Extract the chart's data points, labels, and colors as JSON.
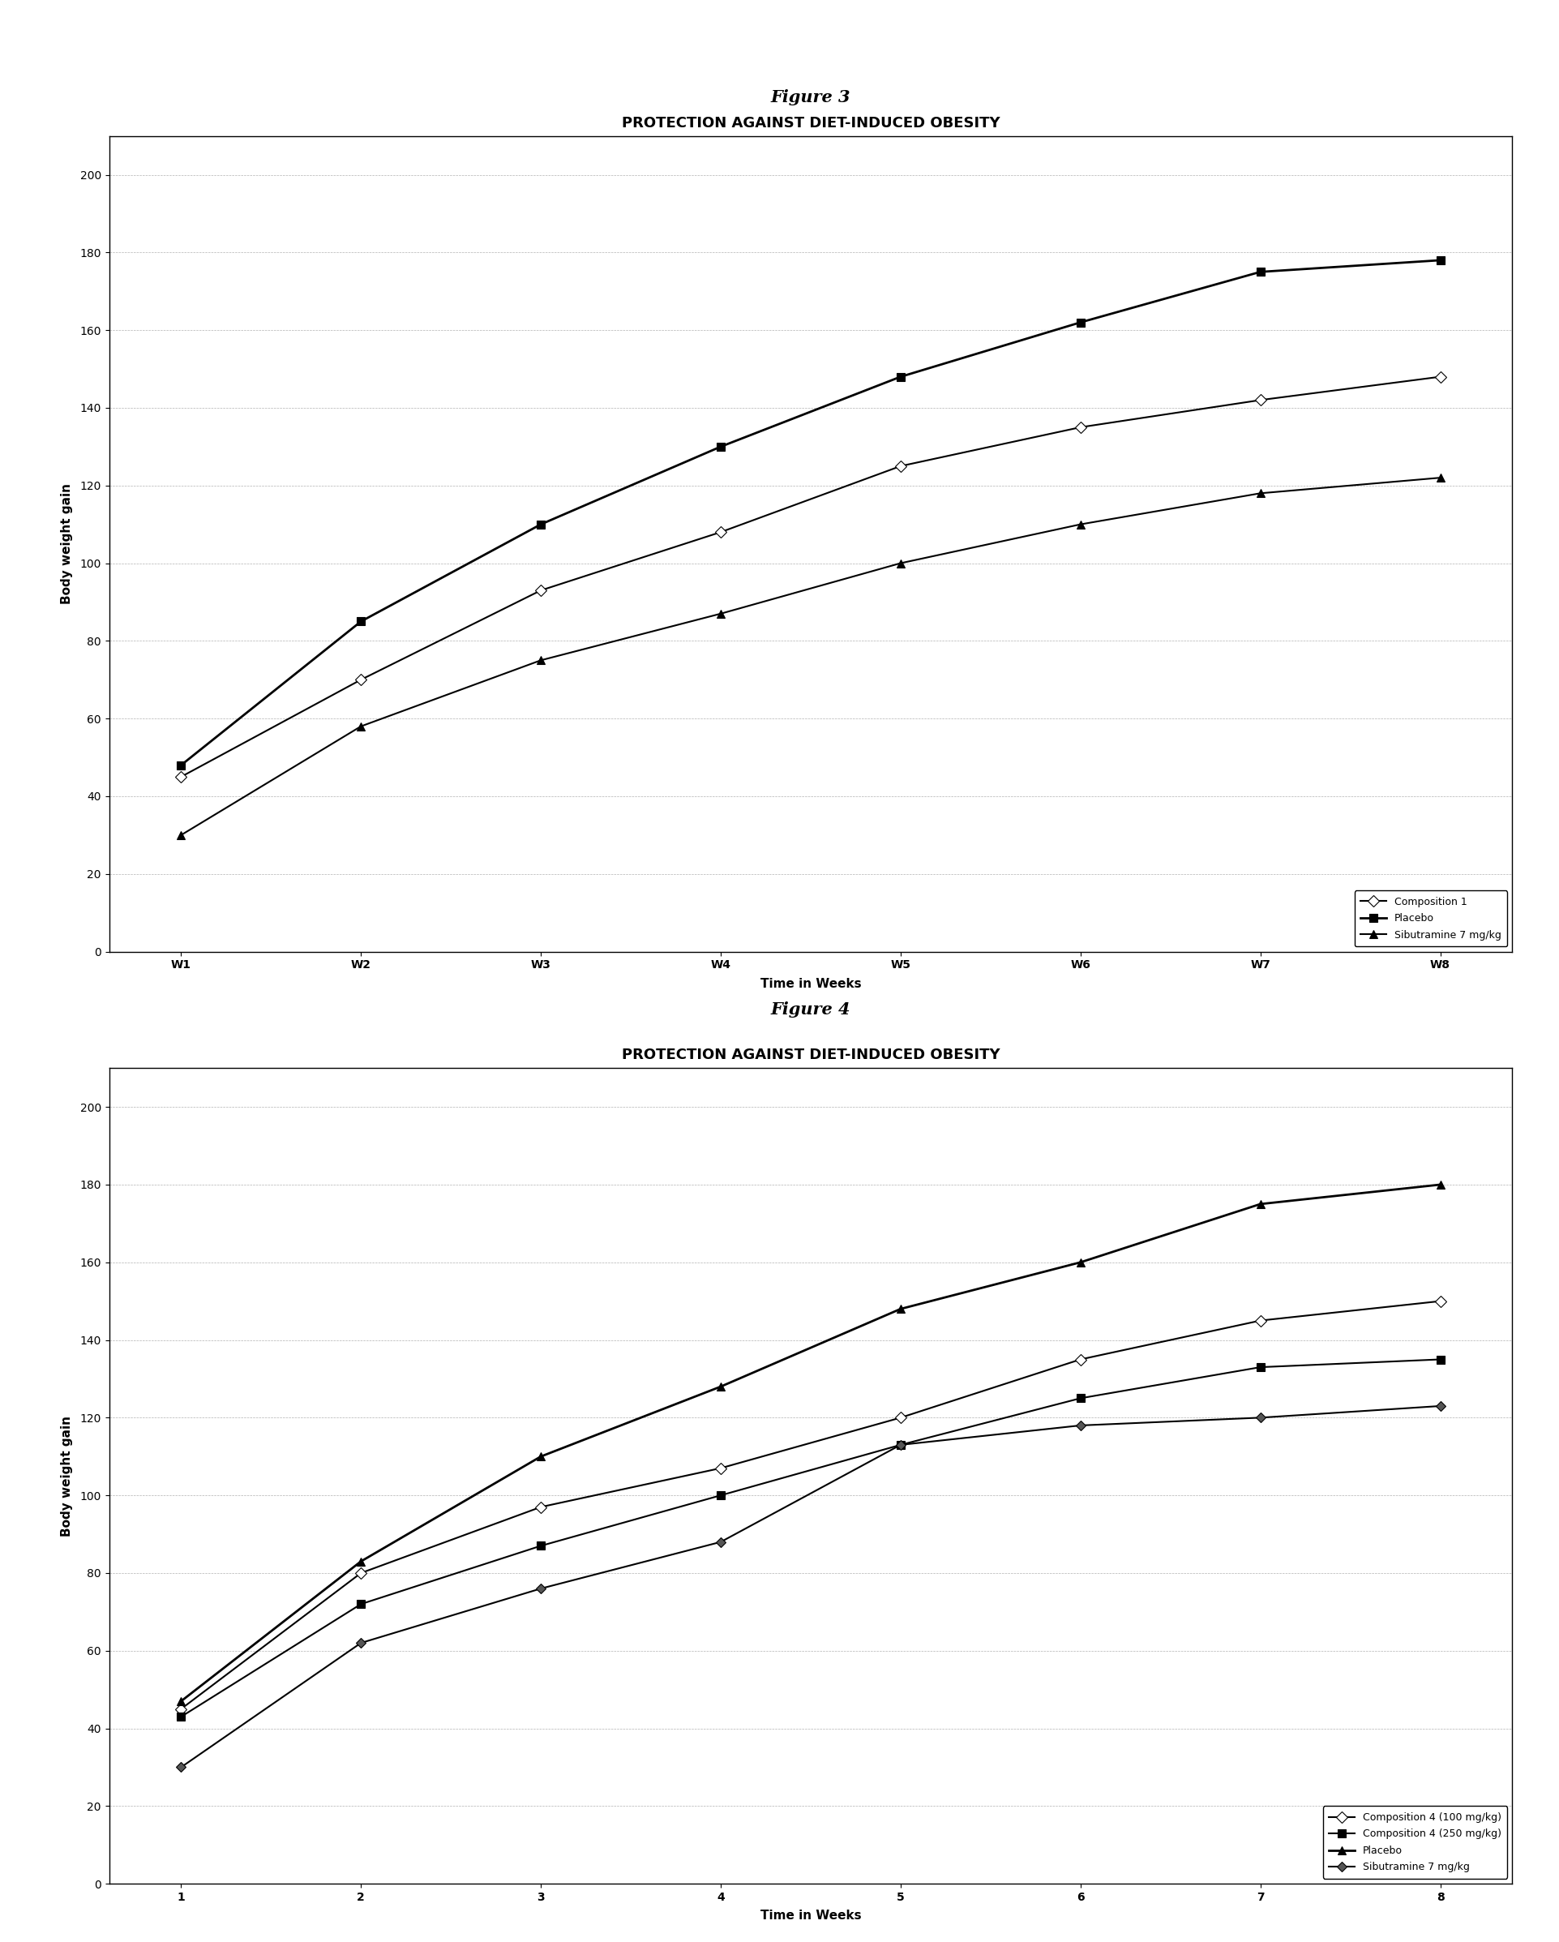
{
  "fig3": {
    "title": "PROTECTION AGAINST DIET-INDUCED OBESITY",
    "xlabel": "Time in Weeks",
    "ylabel": "Body weight gain",
    "figure_label": "Figure 3",
    "x_ticks": [
      "W1",
      "W2",
      "W3",
      "W4",
      "W5",
      "W6",
      "W7",
      "W8"
    ],
    "x_values": [
      1,
      2,
      3,
      4,
      5,
      6,
      7,
      8
    ],
    "ylim": [
      0,
      210
    ],
    "yticks": [
      0,
      20,
      40,
      60,
      80,
      100,
      120,
      140,
      160,
      180,
      200
    ],
    "series": [
      {
        "label": "Composition 1",
        "values": [
          45,
          70,
          93,
          108,
          125,
          135,
          142,
          148
        ],
        "marker": "D",
        "markersize": 7,
        "linewidth": 1.5,
        "color": "#000000",
        "markerfacecolor": "white"
      },
      {
        "label": "Placebo",
        "values": [
          48,
          85,
          110,
          130,
          148,
          162,
          175,
          178
        ],
        "marker": "s",
        "markersize": 7,
        "linewidth": 2.0,
        "color": "#000000",
        "markerfacecolor": "#000000"
      },
      {
        "label": "Sibutramine 7 mg/kg",
        "values": [
          30,
          58,
          75,
          87,
          100,
          110,
          118,
          122
        ],
        "marker": "^",
        "markersize": 7,
        "linewidth": 1.5,
        "color": "#000000",
        "markerfacecolor": "#000000"
      }
    ]
  },
  "fig4": {
    "title": "PROTECTION AGAINST DIET-INDUCED OBESITY",
    "xlabel": "Time in Weeks",
    "ylabel": "Body weight gain",
    "figure_label": "Figure 4",
    "x_ticks": [
      "1",
      "2",
      "3",
      "4",
      "5",
      "6",
      "7",
      "8"
    ],
    "x_values": [
      1,
      2,
      3,
      4,
      5,
      6,
      7,
      8
    ],
    "ylim": [
      0,
      210
    ],
    "yticks": [
      0,
      20,
      40,
      60,
      80,
      100,
      120,
      140,
      160,
      180,
      200
    ],
    "series": [
      {
        "label": "Composition 4 (100 mg/kg)",
        "values": [
          45,
          80,
          97,
          107,
          120,
          135,
          145,
          150
        ],
        "marker": "D",
        "markersize": 7,
        "linewidth": 1.5,
        "color": "#000000",
        "markerfacecolor": "white"
      },
      {
        "label": "Composition 4 (250 mg/kg)",
        "values": [
          43,
          72,
          87,
          100,
          113,
          125,
          133,
          135
        ],
        "marker": "s",
        "markersize": 7,
        "linewidth": 1.5,
        "color": "#000000",
        "markerfacecolor": "#000000"
      },
      {
        "label": "Placebo",
        "values": [
          47,
          83,
          110,
          128,
          148,
          160,
          175,
          180
        ],
        "marker": "^",
        "markersize": 7,
        "linewidth": 2.0,
        "color": "#000000",
        "markerfacecolor": "#000000"
      },
      {
        "label": "Sibutramine 7 mg/kg",
        "values": [
          30,
          62,
          76,
          88,
          113,
          118,
          120,
          123
        ],
        "marker": "D",
        "markersize": 6,
        "linewidth": 1.5,
        "color": "#000000",
        "markerfacecolor": "#555555"
      }
    ]
  },
  "background_color": "#ffffff",
  "figure_label_fontsize": 15,
  "chart_title_fontsize": 13,
  "axis_label_fontsize": 11,
  "tick_fontsize": 10,
  "legend_fontsize": 9
}
